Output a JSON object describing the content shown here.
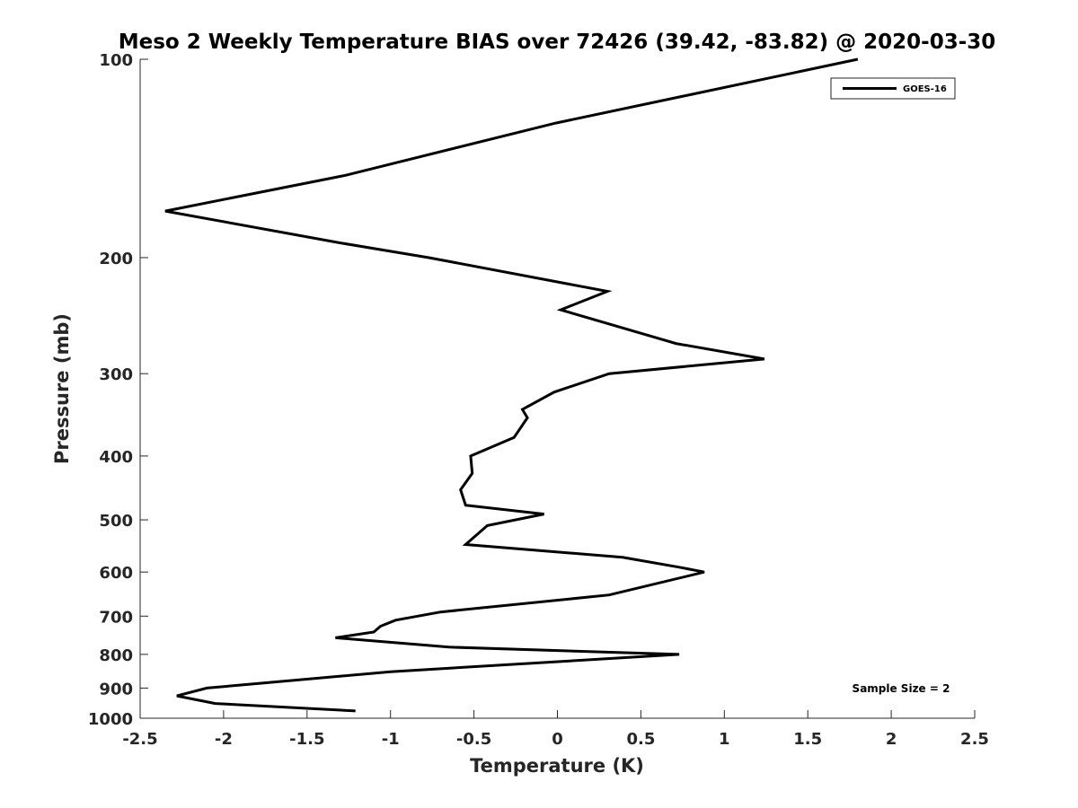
{
  "chart_data": {
    "type": "line",
    "title": "Meso 2 Weekly Temperature BIAS over 72426 (39.42, -83.82) @ 2020-03-30",
    "xlabel": "Temperature (K)",
    "ylabel": "Pressure (mb)",
    "xlim": [
      -2.5,
      2.5
    ],
    "ylim": [
      100,
      1000
    ],
    "y_scale": "log",
    "y_reversed": true,
    "x_ticks": [
      -2.5,
      -2,
      -1.5,
      -1,
      -0.5,
      0,
      0.5,
      1,
      1.5,
      2,
      2.5
    ],
    "x_tick_labels": [
      "-2.5",
      "-2",
      "-1.5",
      "-1",
      "-0.5",
      "0",
      "0.5",
      "1",
      "1.5",
      "2",
      "2.5"
    ],
    "y_ticks": [
      100,
      200,
      300,
      400,
      500,
      600,
      700,
      800,
      900,
      1000
    ],
    "y_tick_labels": [
      "100",
      "200",
      "300",
      "400",
      "500",
      "600",
      "700",
      "800",
      "900",
      "1000"
    ],
    "grid": false,
    "legend": {
      "placement": "top-right",
      "entries": [
        "GOES-16"
      ]
    },
    "annotation": "Sample Size = 2",
    "line_color": "#000000",
    "series": [
      {
        "name": "GOES-16",
        "points": [
          [
            1.8,
            100
          ],
          [
            -0.01,
            125
          ],
          [
            -1.27,
            150
          ],
          [
            -2.35,
            170
          ],
          [
            -1.3,
            190
          ],
          [
            -0.77,
            200
          ],
          [
            0.3,
            225
          ],
          [
            0.02,
            240
          ],
          [
            0.71,
            270
          ],
          [
            1.24,
            285
          ],
          [
            0.31,
            300
          ],
          [
            -0.02,
            320
          ],
          [
            -0.21,
            340
          ],
          [
            -0.18,
            350
          ],
          [
            -0.26,
            375
          ],
          [
            -0.52,
            400
          ],
          [
            -0.51,
            425
          ],
          [
            -0.58,
            450
          ],
          [
            -0.55,
            475
          ],
          [
            -0.08,
            490
          ],
          [
            -0.42,
            510
          ],
          [
            -0.55,
            545
          ],
          [
            0.39,
            570
          ],
          [
            0.73,
            590
          ],
          [
            0.88,
            600
          ],
          [
            0.31,
            650
          ],
          [
            -0.7,
            690
          ],
          [
            -0.97,
            710
          ],
          [
            -1.06,
            725
          ],
          [
            -1.1,
            740
          ],
          [
            -1.33,
            755
          ],
          [
            -0.65,
            780
          ],
          [
            0.73,
            800
          ],
          [
            -1.0,
            850
          ],
          [
            -2.1,
            900
          ],
          [
            -2.28,
            925
          ],
          [
            -2.05,
            950
          ],
          [
            -1.21,
            975
          ]
        ]
      }
    ]
  }
}
